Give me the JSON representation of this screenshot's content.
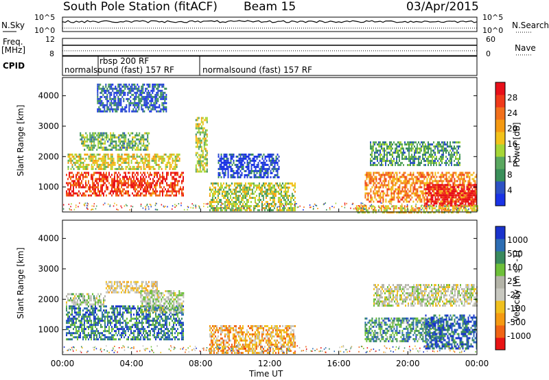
{
  "header": {
    "station": "South Pole Station (fitACF)",
    "beam": "Beam 15",
    "date": "03/Apr/2015"
  },
  "left_panel_labels": {
    "nsky": "N.Sky",
    "freq": "Freq.",
    "mhz": "[MHz]",
    "cpid": "CPID",
    "nsky_top": "10^5",
    "nsky_bottom": "10^0",
    "freq_top": "12",
    "freq_bottom": "8"
  },
  "right_panel_labels": {
    "nsearch": "N.Search",
    "nave": "Nave",
    "nsearch_top": "10^5",
    "nsearch_bottom": "10^0",
    "nave_top": "60",
    "nave_bottom": "0"
  },
  "cpid_segments": {
    "first": "normalsound (fast) 157 RF",
    "second": "rbsp 200 RF",
    "third": "normalsound (fast) 157 RF"
  },
  "colors": {
    "power": [
      "#1a33e6",
      "#2d52c4",
      "#3a8f5a",
      "#5aa860",
      "#a6d636",
      "#f2c21a",
      "#f59a12",
      "#f2701c",
      "#f03a1a",
      "#e8101a"
    ],
    "velocity": [
      "#1a33cc",
      "#2d6eb4",
      "#3a8a5e",
      "#6ec03a",
      "#b4b4a8",
      "#c8c8c0",
      "#f0c01e",
      "#f59a12",
      "#f06414",
      "#e81414"
    ]
  },
  "chart_data": [
    {
      "type": "heatmap",
      "name": "power",
      "ylabel": "Slant Range [km]",
      "xlabel": "",
      "yticks": [
        "1000",
        "2000",
        "3000",
        "4000"
      ],
      "xticks": [
        "00:00",
        "04:00",
        "08:00",
        "12:00",
        "16:00",
        "20:00",
        "00:00"
      ],
      "xlim_hours": [
        0,
        24
      ],
      "ylim_km": [
        180,
        4600
      ],
      "colorbar": {
        "label": "Power [dB]",
        "ticks": [
          "28",
          "24",
          "20",
          "16",
          "12",
          "8",
          "4"
        ],
        "range": [
          0,
          30
        ]
      },
      "regions": [
        {
          "t0": 0.2,
          "t1": 7.0,
          "r0": 700,
          "r1": 1500,
          "level": 0.85
        },
        {
          "t0": 0.3,
          "t1": 6.8,
          "r0": 1600,
          "r1": 2100,
          "level": 0.5
        },
        {
          "t0": 1.0,
          "t1": 5.0,
          "r0": 2200,
          "r1": 2800,
          "level": 0.35
        },
        {
          "t0": 2.0,
          "t1": 6.0,
          "r0": 3500,
          "r1": 4400,
          "level": 0.15
        },
        {
          "t0": 7.7,
          "t1": 8.4,
          "r0": 1500,
          "r1": 3300,
          "level": 0.45
        },
        {
          "t0": 8.5,
          "t1": 13.5,
          "r0": 250,
          "r1": 1150,
          "level": 0.45
        },
        {
          "t0": 9.0,
          "t1": 12.5,
          "r0": 1300,
          "r1": 2100,
          "level": 0.1
        },
        {
          "t0": 17.5,
          "t1": 24.0,
          "r0": 500,
          "r1": 1500,
          "level": 0.7
        },
        {
          "t0": 21.0,
          "t1": 24.0,
          "r0": 400,
          "r1": 1100,
          "level": 1.0
        },
        {
          "t0": 17.8,
          "t1": 23.0,
          "r0": 1700,
          "r1": 2500,
          "level": 0.3
        },
        {
          "t0": 17.0,
          "t1": 24.0,
          "r0": 180,
          "r1": 400,
          "level": 0.55
        }
      ]
    },
    {
      "type": "heatmap",
      "name": "velocity",
      "ylabel": "Slant Range [km]",
      "xlabel": "Time UT",
      "yticks": [
        "1000",
        "2000",
        "3000",
        "4000"
      ],
      "xticks": [
        "00:00",
        "04:00",
        "08:00",
        "12:00",
        "16:00",
        "20:00",
        "00:00"
      ],
      "xlim_hours": [
        0,
        24
      ],
      "ylim_km": [
        180,
        4600
      ],
      "colorbar": {
        "label": "Velocity [m s^-1]",
        "ticks": [
          "1000",
          "500",
          "100",
          "25",
          "-25",
          "-100",
          "-500",
          "-1000"
        ],
        "range": [
          -1000,
          1000
        ]
      },
      "regions": [
        {
          "t0": 0.2,
          "t1": 7.0,
          "r0": 700,
          "r1": 1800,
          "level": 0.2
        },
        {
          "t0": 0.2,
          "t1": 2.5,
          "r0": 1800,
          "r1": 2200,
          "level": 0.45
        },
        {
          "t0": 2.5,
          "t1": 5.5,
          "r0": 2200,
          "r1": 2600,
          "level": 0.6
        },
        {
          "t0": 4.5,
          "t1": 7.0,
          "r0": 1600,
          "r1": 2300,
          "level": 0.45
        },
        {
          "t0": 8.5,
          "t1": 13.5,
          "r0": 250,
          "r1": 1150,
          "level": 0.7
        },
        {
          "t0": 17.5,
          "t1": 22.0,
          "r0": 600,
          "r1": 1400,
          "level": 0.25
        },
        {
          "t0": 21.0,
          "t1": 24.0,
          "r0": 400,
          "r1": 1500,
          "level": 0.15
        },
        {
          "t0": 18.0,
          "t1": 24.0,
          "r0": 1800,
          "r1": 2500,
          "level": 0.5
        }
      ]
    }
  ]
}
